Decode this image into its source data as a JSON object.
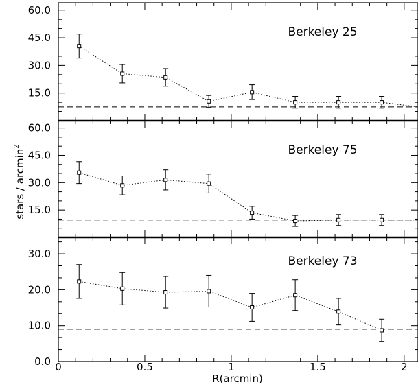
{
  "chart_data": {
    "type": "scatter",
    "xlabel": "R(arcmin)",
    "ylabel": "stars / arcmin",
    "ylabel_superscript": "2",
    "xlim": [
      0,
      2.08
    ],
    "x_ticks": [
      "0",
      "0.5",
      "1",
      "1.5",
      "2"
    ],
    "panels": [
      {
        "label": "Berkeley 25",
        "ylim": [
          0,
          64
        ],
        "y_ticks": [
          "15.0",
          "30.0",
          "45.0",
          "60.0"
        ],
        "background": 7.5,
        "x": [
          0.12,
          0.37,
          0.62,
          0.87,
          1.12,
          1.37,
          1.62,
          1.87
        ],
        "y": [
          40.5,
          25.5,
          23.5,
          10.5,
          15.5,
          10.0,
          10.0,
          10.0
        ],
        "yerr": [
          6.5,
          5.0,
          4.8,
          3.2,
          4.0,
          3.2,
          3.2,
          3.2
        ],
        "trend_end": [
          2.08,
          7.5
        ]
      },
      {
        "label": "Berkeley 75",
        "ylim": [
          0,
          64
        ],
        "y_ticks": [
          "15.0",
          "30.0",
          "45.0",
          "60.0"
        ],
        "background": 9.5,
        "x": [
          0.12,
          0.37,
          0.62,
          0.87,
          1.12,
          1.37,
          1.62,
          1.87
        ],
        "y": [
          35.5,
          28.5,
          31.5,
          29.5,
          13.5,
          9.0,
          9.5,
          9.5
        ],
        "yerr": [
          6.0,
          5.2,
          5.5,
          5.2,
          3.5,
          3.0,
          3.0,
          3.0
        ],
        "trend_end": [
          2.08,
          9.5
        ]
      },
      {
        "label": "Berkeley 73",
        "ylim": [
          0,
          34.6
        ],
        "y_ticks": [
          "0.0",
          "10.0",
          "20.0",
          "30.0"
        ],
        "background": 9.0,
        "x": [
          0.12,
          0.37,
          0.62,
          0.87,
          1.12,
          1.37,
          1.62,
          1.87
        ],
        "y": [
          22.3,
          20.3,
          19.3,
          19.6,
          15.1,
          18.5,
          13.9,
          8.7
        ],
        "yerr": [
          4.7,
          4.5,
          4.4,
          4.4,
          3.9,
          4.3,
          3.7,
          3.1
        ],
        "trend_end": null
      }
    ]
  }
}
